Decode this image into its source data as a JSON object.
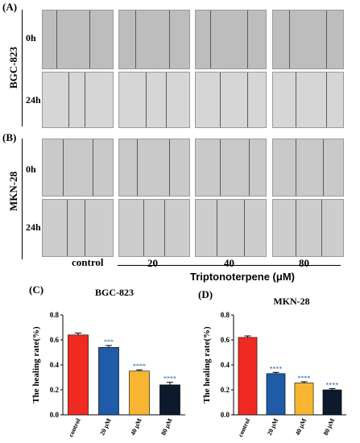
{
  "panels": {
    "A": "(A)",
    "B": "(B)",
    "C": "(C)",
    "D": "(D)"
  },
  "cell_lines": {
    "top": "BGC-823",
    "bottom": "MKN-28"
  },
  "timepoints": {
    "t0": "0h",
    "t24": "24h"
  },
  "columns": {
    "control": "control",
    "d20": "20",
    "d40": "40",
    "d80": "80"
  },
  "treatment_label": "Triptonoterpene (μM)",
  "colors": {
    "control": "#ee2a22",
    "d20": "#1f5ba6",
    "d40": "#f7b531",
    "d80": "#0c1a2c"
  },
  "chart_data": [
    {
      "type": "bar",
      "title": "BGC-823",
      "ylabel": "The healing rate(%)",
      "categories": [
        "control",
        "20 μM",
        "40 μM",
        "80 μM"
      ],
      "values": [
        0.64,
        0.54,
        0.35,
        0.24
      ],
      "errors": [
        0.015,
        0.015,
        0.01,
        0.02
      ],
      "significance": [
        "",
        "***",
        "****",
        "****"
      ],
      "ylim": [
        0.0,
        0.8
      ],
      "yticks": [
        "0.0",
        "0.2",
        "0.4",
        "0.6",
        "0.8"
      ]
    },
    {
      "type": "bar",
      "title": "MKN-28",
      "ylabel": "The healing rate(%)",
      "categories": [
        "control",
        "20 μM",
        "40 μM",
        "80 μM"
      ],
      "values": [
        0.62,
        0.33,
        0.255,
        0.2
      ],
      "errors": [
        0.012,
        0.01,
        0.01,
        0.01
      ],
      "significance": [
        "",
        "****",
        "****",
        "****"
      ],
      "ylim": [
        0.0,
        0.8
      ],
      "yticks": [
        "0.0",
        "0.2",
        "0.4",
        "0.6",
        "0.8"
      ]
    }
  ]
}
